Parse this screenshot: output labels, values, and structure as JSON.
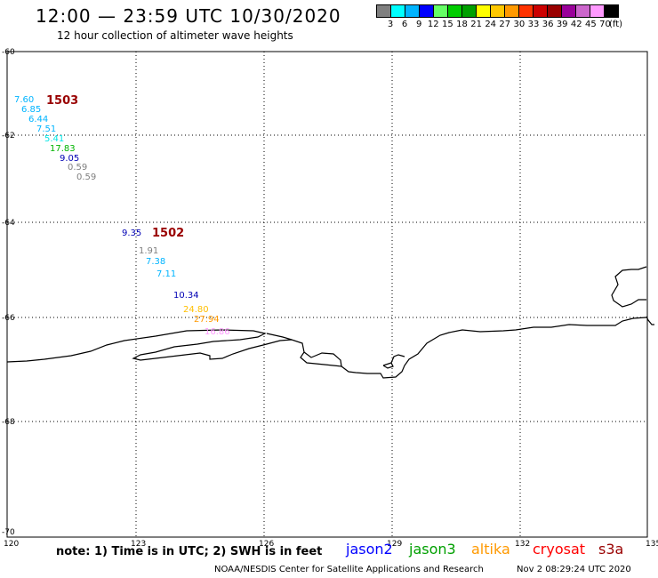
{
  "header": {
    "title": "12:00 — 23:59 UTC 10/30/2020",
    "subtitle": "12 hour collection of altimeter wave heights"
  },
  "colorbar": {
    "unit": "(ft)",
    "colors": [
      "#7f7f7f",
      "#00ffff",
      "#00b4ff",
      "#0000ff",
      "#66ff66",
      "#00cc00",
      "#00a000",
      "#ffff00",
      "#ffc800",
      "#ff9900",
      "#ff3300",
      "#cc0000",
      "#990000",
      "#990099",
      "#cc66cc",
      "#ff99ff",
      "#000000"
    ],
    "labels": [
      "3",
      "6",
      "9",
      "12",
      "15",
      "18",
      "21",
      "24",
      "27",
      "30",
      "33",
      "36",
      "39",
      "42",
      "45",
      "70"
    ]
  },
  "axes": {
    "lon_ticks": [
      "120",
      "123",
      "126",
      "129",
      "132",
      "135"
    ],
    "lat_ticks": [
      "-60",
      "-62",
      "-64",
      "-66",
      "-68",
      "-70"
    ]
  },
  "map_data": {
    "lon_range": [
      120,
      135
    ],
    "lat_range": [
      -60,
      -70
    ],
    "tracks": [
      {
        "id": "1503",
        "id_color": "#990000",
        "points": [
          {
            "label": "7.60",
            "color": "#00b4ff"
          },
          {
            "label": "6.85",
            "color": "#00b4ff"
          },
          {
            "label": "6.44",
            "color": "#00b4ff"
          },
          {
            "label": "7.51",
            "color": "#00b4ff"
          },
          {
            "label": "5.41",
            "color": "#00e5e5"
          },
          {
            "label": "17.83",
            "color": "#00b400"
          },
          {
            "label": "9.05",
            "color": "#0000b4"
          },
          {
            "label": "0.59",
            "color": "#7f7f7f"
          },
          {
            "label": "0.59",
            "color": "#7f7f7f"
          }
        ]
      },
      {
        "id": "1502",
        "id_color": "#990000",
        "points": [
          {
            "label": "9.35",
            "color": "#0000b4"
          },
          {
            "label": "1.91",
            "color": "#7f7f7f"
          },
          {
            "label": "7.38",
            "color": "#00b4ff"
          },
          {
            "label": "7.11",
            "color": "#00b4ff"
          },
          {
            "label": "10.34",
            "color": "#0000b4"
          },
          {
            "label": "24.80",
            "color": "#ffbf00"
          },
          {
            "label": "27.94",
            "color": "#ff9900"
          },
          {
            "label": "16.86",
            "color": "#ff99ff"
          }
        ]
      }
    ]
  },
  "footer": {
    "note": "note: 1) Time is in UTC; 2) SWH is in feet",
    "missions": [
      {
        "name": "jason2",
        "color": "#0000ff"
      },
      {
        "name": "jason3",
        "color": "#00a000"
      },
      {
        "name": "altika",
        "color": "#ff9900"
      },
      {
        "name": "cryosat",
        "color": "#ff0000"
      },
      {
        "name": "s3a",
        "color": "#990000"
      }
    ],
    "credit": "NOAA/NESDIS Center for Satellite Applications and Research",
    "timestamp": "Nov  2 08:29:24 UTC 2020"
  }
}
